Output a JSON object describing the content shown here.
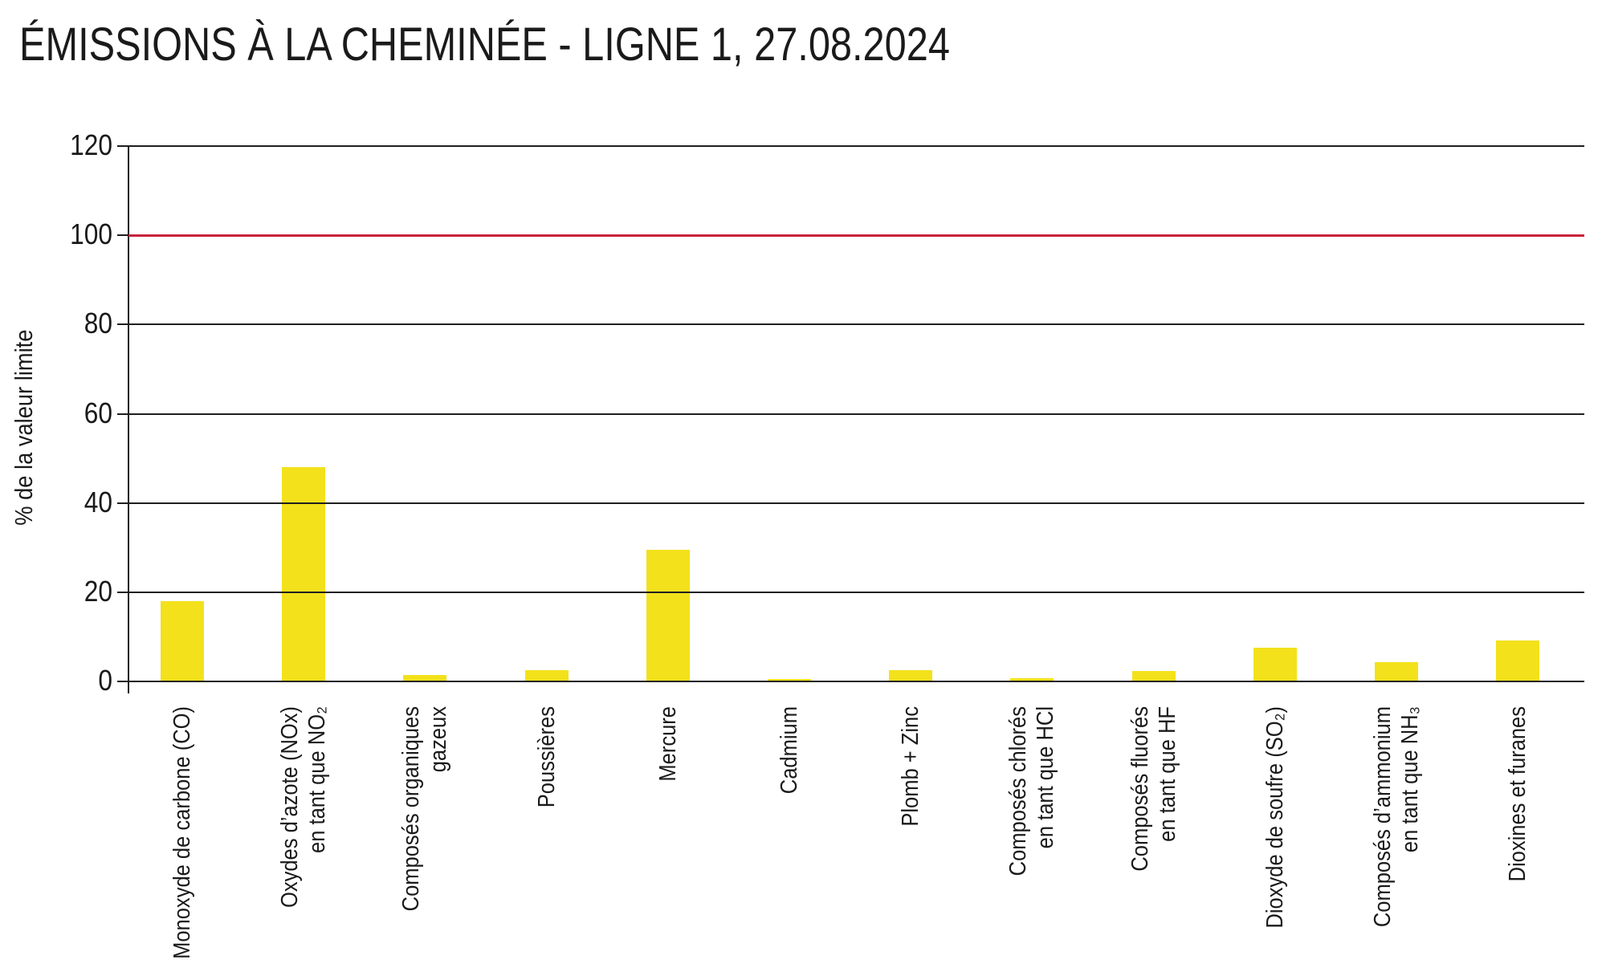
{
  "title": "ÉMISSIONS À LA CHEMINÉE - LIGNE 1, 27.08.2024",
  "chart_data": {
    "type": "bar",
    "categories": [
      [
        "Monoxyde de carbone (CO)"
      ],
      [
        "Oxydes d’azote (NOx)",
        "en tant que NO₂"
      ],
      [
        "Composés organiques",
        "gazeux"
      ],
      [
        "Poussières"
      ],
      [
        "Mercure"
      ],
      [
        "Cadmium"
      ],
      [
        "Plomb + Zinc"
      ],
      [
        "Composés chlorés",
        "en tant que HCl"
      ],
      [
        "Composés fluorés",
        "en tant que HF"
      ],
      [
        "Dioxyde de soufre (SO₂)"
      ],
      [
        "Composés d’ammonium",
        "en tant que NH₃"
      ],
      [
        "Dioxines et furanes"
      ]
    ],
    "values": [
      18,
      48,
      1.4,
      2.5,
      29.5,
      0.6,
      2.5,
      0.8,
      2.3,
      7.5,
      4.4,
      9.2
    ],
    "title": "ÉMISSIONS À LA CHEMINÉE - LIGNE 1, 27.08.2024",
    "xlabel": "",
    "ylabel": "% de la valeur limite",
    "ylim": [
      0,
      120
    ],
    "yticks": [
      0,
      20,
      40,
      60,
      80,
      100,
      120
    ],
    "grid": true,
    "legend": null,
    "limit_line": {
      "value": 100,
      "color": "#C8233C"
    },
    "bar_color": "#F3E11C",
    "axis_color": "#1f1f1f"
  }
}
